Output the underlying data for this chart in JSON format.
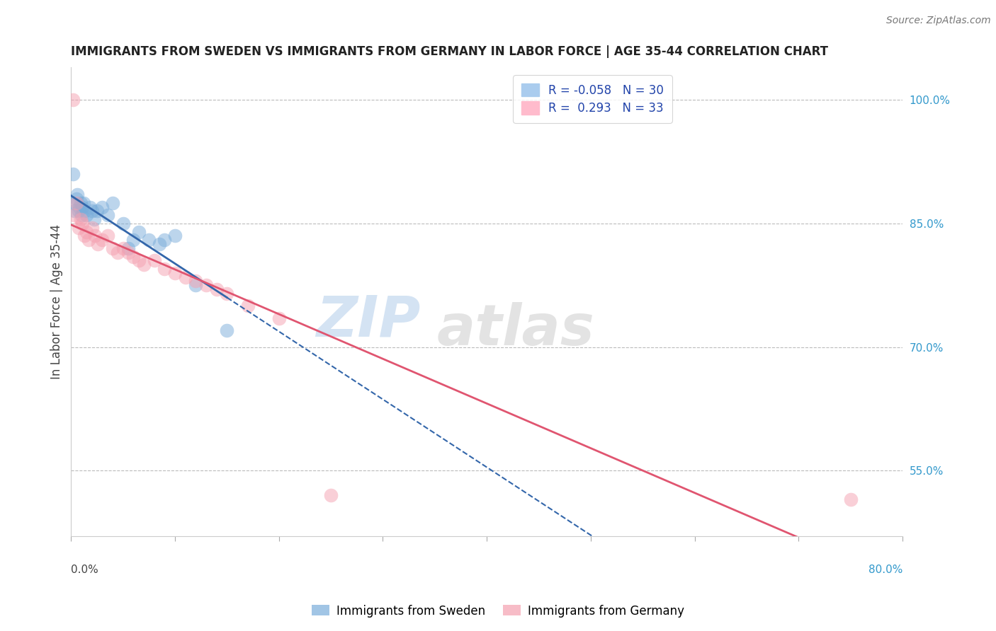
{
  "title": "IMMIGRANTS FROM SWEDEN VS IMMIGRANTS FROM GERMANY IN LABOR FORCE | AGE 35-44 CORRELATION CHART",
  "source": "Source: ZipAtlas.com",
  "ylabel": "In Labor Force | Age 35-44",
  "right_yticks": [
    55.0,
    70.0,
    85.0,
    100.0
  ],
  "watermark_zip": "ZIP",
  "watermark_atlas": "atlas",
  "legend_blue_r": "R = -0.058",
  "legend_blue_n": "N = 30",
  "legend_pink_r": "R =  0.293",
  "legend_pink_n": "N = 33",
  "sweden_color": "#7aadda",
  "germany_color": "#f5a0b0",
  "sweden_trend_color": "#3366aa",
  "germany_trend_color": "#e05570",
  "sweden_x": [
    0.15,
    0.2,
    0.3,
    0.5,
    0.6,
    0.7,
    0.8,
    0.9,
    1.0,
    1.1,
    1.2,
    1.3,
    1.5,
    1.8,
    2.0,
    2.2,
    2.5,
    3.0,
    3.5,
    4.0,
    5.0,
    5.5,
    6.0,
    6.5,
    7.5,
    8.5,
    9.0,
    10.0,
    12.0,
    15.0
  ],
  "sweden_y": [
    91.0,
    87.5,
    86.5,
    88.0,
    88.5,
    86.5,
    87.0,
    87.5,
    86.0,
    87.0,
    87.5,
    86.5,
    86.0,
    87.0,
    86.5,
    85.5,
    86.5,
    87.0,
    86.0,
    87.5,
    85.0,
    82.0,
    83.0,
    84.0,
    83.0,
    82.5,
    83.0,
    83.5,
    77.5,
    72.0
  ],
  "germany_x": [
    0.15,
    0.25,
    0.5,
    0.7,
    0.9,
    1.1,
    1.3,
    1.5,
    1.7,
    2.0,
    2.3,
    2.6,
    3.0,
    3.5,
    4.0,
    4.5,
    5.0,
    5.5,
    6.0,
    6.5,
    7.0,
    8.0,
    9.0,
    10.0,
    11.0,
    12.0,
    13.0,
    14.0,
    15.0,
    17.0,
    20.0,
    25.0,
    75.0
  ],
  "germany_y": [
    100.0,
    86.0,
    87.5,
    84.5,
    85.5,
    85.0,
    83.5,
    84.0,
    83.0,
    84.5,
    83.5,
    82.5,
    83.0,
    83.5,
    82.0,
    81.5,
    82.0,
    81.5,
    81.0,
    80.5,
    80.0,
    80.5,
    79.5,
    79.0,
    78.5,
    78.0,
    77.5,
    77.0,
    76.5,
    75.0,
    73.5,
    52.0,
    51.5
  ],
  "xmin": 0.0,
  "xmax": 80.0,
  "ymin": 47.0,
  "ymax": 104.0,
  "marker_size": 200
}
